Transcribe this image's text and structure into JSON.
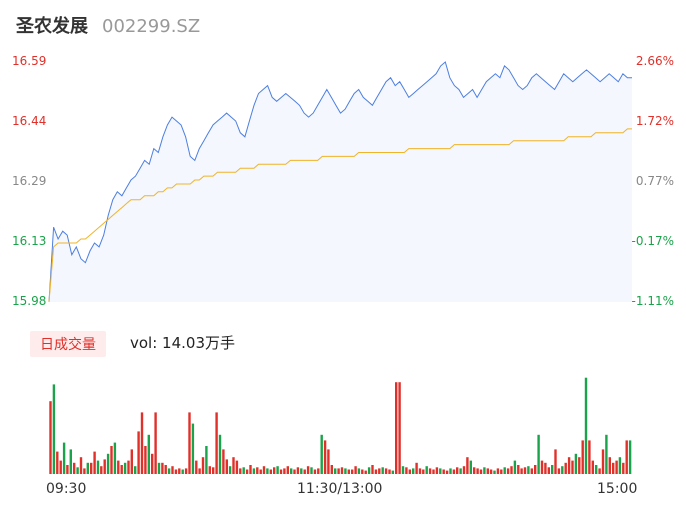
{
  "header": {
    "name": "圣农发展",
    "code": "002299.SZ"
  },
  "colors": {
    "up": "#e0302a",
    "down": "#1aa34a",
    "neutral": "#888888",
    "price_line": "#4d7fe0",
    "avg_line": "#f0b429",
    "area_fill": "#f4f7fd"
  },
  "chart_data": [
    {
      "type": "line",
      "y_left_ticks": [
        "16.59",
        "16.44",
        "16.29",
        "16.13",
        "15.98"
      ],
      "y_right_ticks": [
        "2.66%",
        "1.72%",
        "0.77%",
        "-0.17%",
        "-1.11%"
      ],
      "ylim": [
        15.98,
        16.59
      ],
      "x_ticks": [
        "09:30",
        "11:30/13:00",
        "15:00"
      ],
      "series": [
        {
          "values": [
            15.98,
            16.17,
            16.14,
            16.16,
            16.15,
            16.1,
            16.12,
            16.09,
            16.08,
            16.11,
            16.13,
            16.12,
            16.15,
            16.2,
            16.24,
            16.26,
            16.25,
            16.27,
            16.29,
            16.3,
            16.32,
            16.34,
            16.33,
            16.37,
            16.36,
            16.4,
            16.43,
            16.45,
            16.44,
            16.43,
            16.4,
            16.35,
            16.34,
            16.37,
            16.39,
            16.41,
            16.43,
            16.44,
            16.45,
            16.46,
            16.45,
            16.44,
            16.41,
            16.4,
            16.44,
            16.48,
            16.51,
            16.52,
            16.53,
            16.5,
            16.49,
            16.5,
            16.51,
            16.5,
            16.49,
            16.48,
            16.46,
            16.45,
            16.46,
            16.48,
            16.5,
            16.52,
            16.5,
            16.48,
            16.46,
            16.47,
            16.49,
            16.51,
            16.52,
            16.5,
            16.49,
            16.48,
            16.5,
            16.52,
            16.54,
            16.55,
            16.53,
            16.54,
            16.52,
            16.5,
            16.51,
            16.52,
            16.53,
            16.54,
            16.55,
            16.56,
            16.58,
            16.59,
            16.55,
            16.53,
            16.52,
            16.5,
            16.51,
            16.52,
            16.5,
            16.52,
            16.54,
            16.55,
            16.56,
            16.55,
            16.58,
            16.57,
            16.55,
            16.53,
            16.52,
            16.53,
            16.55,
            16.56,
            16.55,
            16.54,
            16.53,
            16.52,
            16.54,
            16.56,
            16.55,
            16.54,
            16.55,
            16.56,
            16.57,
            16.56,
            16.55,
            16.54,
            16.55,
            16.56,
            16.55,
            16.54,
            16.56,
            16.55,
            16.55
          ]
        },
        {
          "values": [
            15.98,
            16.12,
            16.13,
            16.13,
            16.13,
            16.13,
            16.13,
            16.14,
            16.14,
            16.15,
            16.16,
            16.17,
            16.18,
            16.19,
            16.2,
            16.21,
            16.22,
            16.23,
            16.24,
            16.24,
            16.24,
            16.25,
            16.25,
            16.25,
            16.26,
            16.26,
            16.27,
            16.27,
            16.28,
            16.28,
            16.28,
            16.28,
            16.29,
            16.29,
            16.3,
            16.3,
            16.3,
            16.31,
            16.31,
            16.31,
            16.31,
            16.31,
            16.32,
            16.32,
            16.32,
            16.32,
            16.33,
            16.33,
            16.33,
            16.33,
            16.33,
            16.33,
            16.33,
            16.34,
            16.34,
            16.34,
            16.34,
            16.34,
            16.34,
            16.34,
            16.35,
            16.35,
            16.35,
            16.35,
            16.35,
            16.35,
            16.35,
            16.35,
            16.36,
            16.36,
            16.36,
            16.36,
            16.36,
            16.36,
            16.36,
            16.36,
            16.36,
            16.36,
            16.36,
            16.37,
            16.37,
            16.37,
            16.37,
            16.37,
            16.37,
            16.37,
            16.37,
            16.37,
            16.37,
            16.38,
            16.38,
            16.38,
            16.38,
            16.38,
            16.38,
            16.38,
            16.38,
            16.38,
            16.38,
            16.38,
            16.38,
            16.38,
            16.39,
            16.39,
            16.39,
            16.39,
            16.39,
            16.39,
            16.39,
            16.39,
            16.39,
            16.39,
            16.39,
            16.39,
            16.4,
            16.4,
            16.4,
            16.4,
            16.4,
            16.4,
            16.41,
            16.41,
            16.41,
            16.41,
            16.41,
            16.41,
            16.41,
            16.42,
            16.42
          ]
        }
      ]
    },
    {
      "type": "bar",
      "title": "日成交量",
      "summary": "vol: 14.03万手",
      "series": [
        {
          "values": [
            0.65,
            0.8,
            0.2,
            0.12,
            0.28,
            0.08,
            0.22,
            0.1,
            0.06,
            0.15,
            0.05,
            0.1,
            0.1,
            0.2,
            0.12,
            0.07,
            0.13,
            0.18,
            0.25,
            0.28,
            0.12,
            0.08,
            0.1,
            0.12,
            0.22,
            0.07,
            0.38,
            0.55,
            0.25,
            0.35,
            0.18,
            0.55,
            0.1,
            0.1,
            0.08,
            0.05,
            0.07,
            0.04,
            0.05,
            0.04,
            0.05,
            0.55,
            0.45,
            0.12,
            0.05,
            0.15,
            0.25,
            0.07,
            0.06,
            0.55,
            0.35,
            0.22,
            0.13,
            0.07,
            0.15,
            0.12,
            0.05,
            0.06,
            0.04,
            0.08,
            0.05,
            0.06,
            0.04,
            0.07,
            0.05,
            0.04,
            0.06,
            0.07,
            0.04,
            0.05,
            0.07,
            0.05,
            0.04,
            0.06,
            0.05,
            0.04,
            0.07,
            0.06,
            0.04,
            0.05,
            0.35,
            0.3,
            0.22,
            0.08,
            0.05,
            0.05,
            0.06,
            0.05,
            0.04,
            0.04,
            0.07,
            0.05,
            0.04,
            0.03,
            0.06,
            0.08,
            0.04,
            0.05,
            0.06,
            0.05,
            0.04,
            0.03,
            0.82,
            0.82,
            0.07,
            0.06,
            0.04,
            0.05,
            0.1,
            0.05,
            0.04,
            0.07,
            0.05,
            0.04,
            0.06,
            0.05,
            0.04,
            0.03,
            0.05,
            0.04,
            0.06,
            0.05,
            0.07,
            0.15,
            0.12,
            0.06,
            0.05,
            0.04,
            0.06,
            0.05,
            0.04,
            0.03,
            0.05,
            0.04,
            0.06,
            0.05,
            0.07,
            0.12,
            0.08,
            0.05,
            0.06,
            0.07,
            0.05,
            0.08,
            0.35,
            0.12,
            0.1,
            0.06,
            0.08,
            0.22,
            0.05,
            0.07,
            0.1,
            0.15,
            0.12,
            0.18,
            0.15,
            0.3,
            0.86,
            0.3,
            0.12,
            0.08,
            0.05,
            0.22,
            0.35,
            0.15,
            0.1,
            0.12,
            0.15,
            0.1,
            0.3,
            0.3
          ],
          "up_flags": [
            1,
            0,
            1,
            1,
            0,
            1,
            0,
            1,
            0,
            1,
            1,
            0,
            1,
            1,
            0,
            1,
            1,
            0,
            1,
            0,
            1,
            1,
            0,
            1,
            1,
            0,
            1,
            1,
            1,
            0,
            1,
            1,
            0,
            1,
            1,
            0,
            1,
            1,
            1,
            0,
            1,
            1,
            0,
            1,
            1,
            1,
            0,
            1,
            1,
            1,
            0,
            1,
            1,
            0,
            1,
            1,
            1,
            0,
            1,
            1,
            0,
            1,
            1,
            1,
            0,
            1,
            1,
            0,
            1,
            1,
            1,
            0,
            1,
            1,
            0,
            1,
            1,
            0,
            1,
            1,
            0,
            1,
            1,
            1,
            0,
            1,
            1,
            0,
            1,
            1,
            1,
            0,
            1,
            1,
            0,
            1,
            1,
            1,
            0,
            1,
            1,
            0,
            1,
            1,
            0,
            1,
            1,
            0,
            1,
            1,
            1,
            0,
            1,
            1,
            1,
            0,
            1,
            1,
            0,
            1,
            1,
            0,
            1,
            1,
            0,
            1,
            1,
            1,
            0,
            1,
            1,
            0,
            1,
            1,
            0,
            1,
            1,
            0,
            1,
            1,
            1,
            0,
            1,
            1,
            0,
            1,
            1,
            1,
            0,
            1,
            1,
            0,
            1,
            1,
            1,
            0,
            1,
            1,
            0,
            1,
            1,
            0,
            1,
            1,
            0,
            1,
            1,
            1,
            0,
            1,
            1,
            0,
            1,
            1
          ]
        }
      ]
    }
  ]
}
